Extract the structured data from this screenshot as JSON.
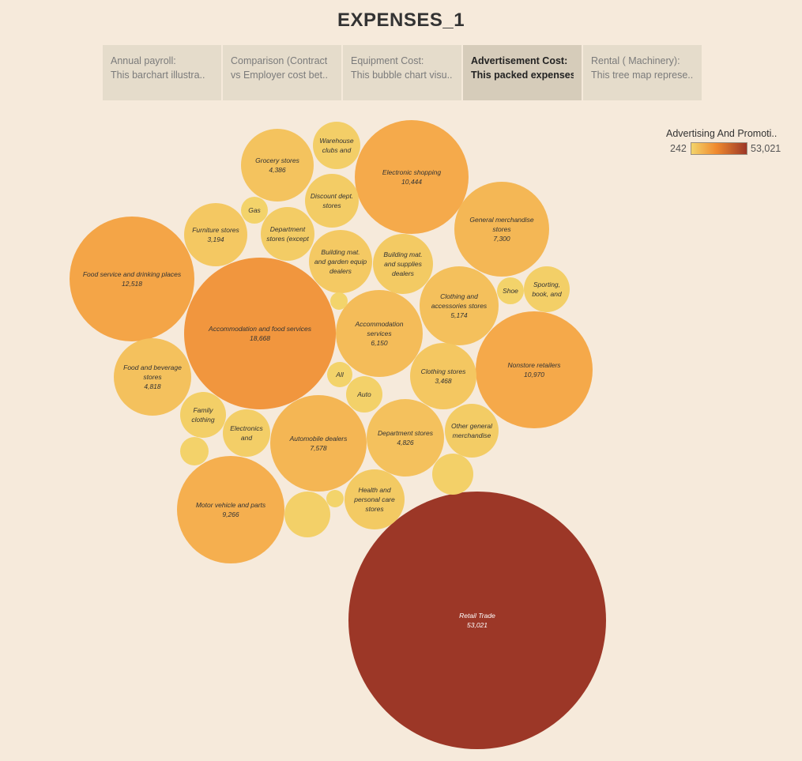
{
  "title": "EXPENSES_1",
  "tabs": [
    {
      "line1": "Annual payroll:",
      "line2": "This barchart illustra.."
    },
    {
      "line1": "Comparison (Contract",
      "line2": "vs Employer cost bet.."
    },
    {
      "line1": "Equipment Cost:",
      "line2": "This bubble chart visu.."
    },
    {
      "line1": "Advertisement Cost:",
      "line2": "This packed expenses.."
    },
    {
      "line1": "Rental ( Machinery):",
      "line2": "This tree map represe.."
    }
  ],
  "active_tab": 3,
  "legend": {
    "title": "Advertising And Promoti..",
    "min": "242",
    "max": "53,021",
    "color_start": "#f3d46b",
    "color_mid": "#f08a2e",
    "color_end": "#9c3727"
  },
  "chart_data": {
    "type": "packed-bubble",
    "color_measure": "Advertising And Promoti..",
    "color_range": [
      242,
      53021
    ],
    "bubbles": [
      {
        "lines": [
          "Retail Trade"
        ],
        "value": 53021,
        "value_label": "53,021"
      },
      {
        "lines": [
          "Accommodation and food services"
        ],
        "value": 18668,
        "value_label": "18,668"
      },
      {
        "lines": [
          "Food service and drinking places"
        ],
        "value": 12518,
        "value_label": "12,518"
      },
      {
        "lines": [
          "Nonstore retailers"
        ],
        "value": 10970,
        "value_label": "10,970"
      },
      {
        "lines": [
          "Electronic shopping"
        ],
        "value": 10444,
        "value_label": "10,444"
      },
      {
        "lines": [
          "Motor vehicle and parts"
        ],
        "value": 9266,
        "value_label": "9,266"
      },
      {
        "lines": [
          "Automobile dealers"
        ],
        "value": 7578,
        "value_label": "7,578"
      },
      {
        "lines": [
          "General merchandise",
          "stores"
        ],
        "value": 7300,
        "value_label": "7,300"
      },
      {
        "lines": [
          "Accommodation",
          "services"
        ],
        "value": 6150,
        "value_label": "6,150"
      },
      {
        "lines": [
          "Clothing and",
          "accessories stores"
        ],
        "value": 5174,
        "value_label": "5,174"
      },
      {
        "lines": [
          "Department stores"
        ],
        "value": 4826,
        "value_label": "4,826"
      },
      {
        "lines": [
          "Food and beverage",
          "stores"
        ],
        "value": 4818,
        "value_label": "4,818"
      },
      {
        "lines": [
          "Grocery stores"
        ],
        "value": 4386,
        "value_label": "4,386"
      },
      {
        "lines": [
          "Clothing stores"
        ],
        "value": 3468,
        "value_label": "3,468"
      },
      {
        "lines": [
          "Furniture stores"
        ],
        "value": 3194,
        "value_label": "3,194"
      },
      {
        "lines": [
          "Building mat.",
          "and garden equip",
          "dealers"
        ],
        "value": 2900,
        "value_label": ""
      },
      {
        "lines": [
          "Building mat.",
          "and supplies",
          "dealers"
        ],
        "value": 2700,
        "value_label": ""
      },
      {
        "lines": [
          "Health and",
          "personal care",
          "stores"
        ],
        "value": 2650,
        "value_label": ""
      },
      {
        "lines": [
          "Department",
          "stores (except"
        ],
        "value": 2150,
        "value_label": ""
      },
      {
        "lines": [
          "Discount dept.",
          "stores"
        ],
        "value": 2150,
        "value_label": ""
      },
      {
        "lines": [
          "Other general",
          "merchandise"
        ],
        "value": 2150,
        "value_label": ""
      },
      {
        "lines": [
          "Electronics",
          "and"
        ],
        "value": 1650,
        "value_label": ""
      },
      {
        "lines": [
          "Warehouse",
          "clubs and"
        ],
        "value": 1600,
        "value_label": ""
      },
      {
        "lines": [
          "Sporting,",
          "book, and"
        ],
        "value": 1450,
        "value_label": ""
      },
      {
        "lines": [
          "Family",
          "clothing"
        ],
        "value": 1450,
        "value_label": ""
      },
      {
        "lines": [],
        "value": 1200,
        "value_label": ""
      },
      {
        "lines": [],
        "value": 1250,
        "value_label": ""
      },
      {
        "lines": [
          "Auto"
        ],
        "value": 900,
        "value_label": ""
      },
      {
        "lines": [],
        "value": 650,
        "value_label": ""
      },
      {
        "lines": [
          "Shoe"
        ],
        "value": 480,
        "value_label": ""
      },
      {
        "lines": [
          "All"
        ],
        "value": 420,
        "value_label": ""
      },
      {
        "lines": [
          "Gas"
        ],
        "value": 520,
        "value_label": ""
      },
      {
        "lines": [],
        "value": 280,
        "value_label": ""
      },
      {
        "lines": [],
        "value": 242,
        "value_label": ""
      }
    ]
  }
}
